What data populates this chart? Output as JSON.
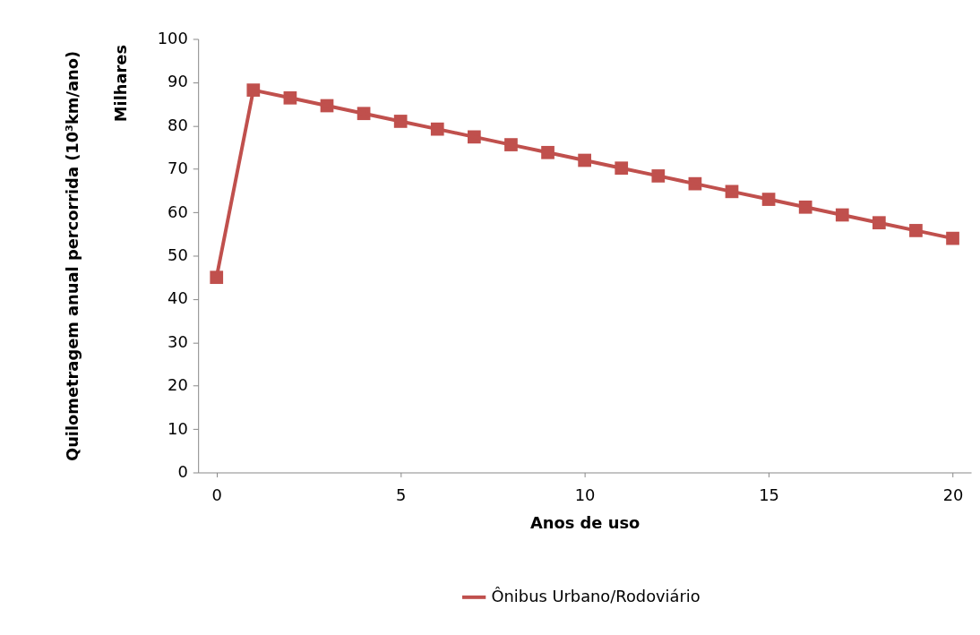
{
  "chart_data": {
    "type": "line",
    "xlabel": "Anos de uso",
    "ylabel": "Quilometragem anual percorrida (10³km/ano)",
    "annotations": [
      "Milhares"
    ],
    "x": [
      0,
      1,
      2,
      3,
      4,
      5,
      6,
      7,
      8,
      9,
      10,
      11,
      12,
      13,
      14,
      15,
      16,
      17,
      18,
      19,
      20
    ],
    "series": [
      {
        "name": "Ônibus Urbano/Rodoviário",
        "color": "#c0504d",
        "values": [
          45,
          88.2,
          86.4,
          84.6,
          82.8,
          81,
          79.2,
          77.4,
          75.6,
          73.8,
          72,
          70.2,
          68.4,
          66.6,
          64.8,
          63,
          61.2,
          59.4,
          57.6,
          55.8,
          54
        ]
      }
    ],
    "xlim": [
      -0.5,
      20.5
    ],
    "xticks": [
      0,
      5,
      10,
      15,
      20
    ],
    "ylim": [
      0,
      100
    ],
    "yticks": [
      0,
      10,
      20,
      30,
      40,
      50,
      60,
      70,
      80,
      90,
      100
    ],
    "grid": false,
    "legend": "bottom",
    "marker": "square",
    "line_style": "solid"
  }
}
